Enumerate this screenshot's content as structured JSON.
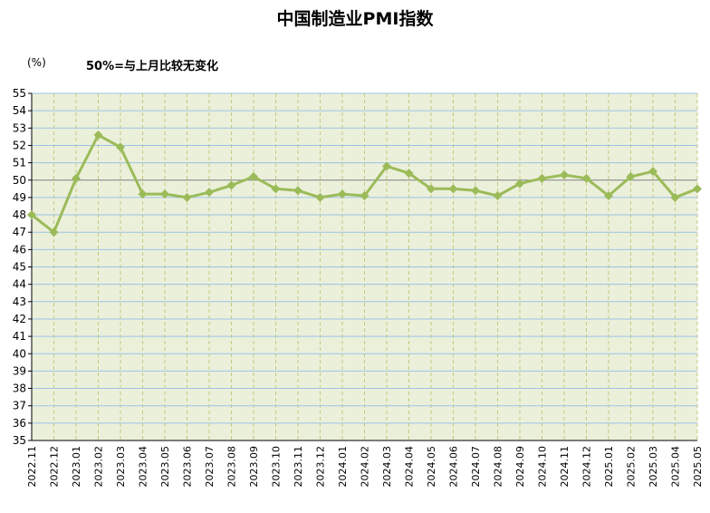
{
  "header": {
    "title": "中国制造业PMI指数",
    "unit_label": "(%)",
    "note": "50%=与上月比较无变化"
  },
  "chart_data": {
    "type": "line",
    "title": "中国制造业PMI指数",
    "xlabel": "",
    "ylabel": "(%)",
    "annotation": "50%=与上月比较无变化",
    "ylim": [
      35,
      55
    ],
    "yticks": [
      35,
      36,
      37,
      38,
      39,
      40,
      41,
      42,
      43,
      44,
      45,
      46,
      47,
      48,
      49,
      50,
      51,
      52,
      53,
      54,
      55
    ],
    "reference_line": 50,
    "grid": true,
    "legend": "none",
    "colors": {
      "plot_background": "#ebf0da",
      "series": "#9bbb59",
      "h_grid": "#9dc3e6",
      "v_grid": "#c6c980",
      "ref_line": "#7f7f7f"
    },
    "categories": [
      "2022.11",
      "2022.12",
      "2023.01",
      "2023.02",
      "2023.03",
      "2023.04",
      "2023.05",
      "2023.06",
      "2023.07",
      "2023.08",
      "2023.09",
      "2023.10",
      "2023.11",
      "2023.12",
      "2024.01",
      "2024.02",
      "2024.03",
      "2024.04",
      "2024.05",
      "2024.06",
      "2024.07",
      "2024.08",
      "2024.09",
      "2024.10",
      "2024.11",
      "2024.12",
      "2025.01",
      "2025.02",
      "2025.03",
      "2025.04",
      "2025.05"
    ],
    "series": [
      {
        "values": [
          48.0,
          47.0,
          50.1,
          52.6,
          51.9,
          49.2,
          49.2,
          49.0,
          49.3,
          49.7,
          50.2,
          49.5,
          49.4,
          49.0,
          49.2,
          49.1,
          50.8,
          50.4,
          49.5,
          49.5,
          49.4,
          49.1,
          49.8,
          50.1,
          50.3,
          50.1,
          49.1,
          50.2,
          50.5,
          49.0,
          49.5
        ]
      }
    ]
  }
}
